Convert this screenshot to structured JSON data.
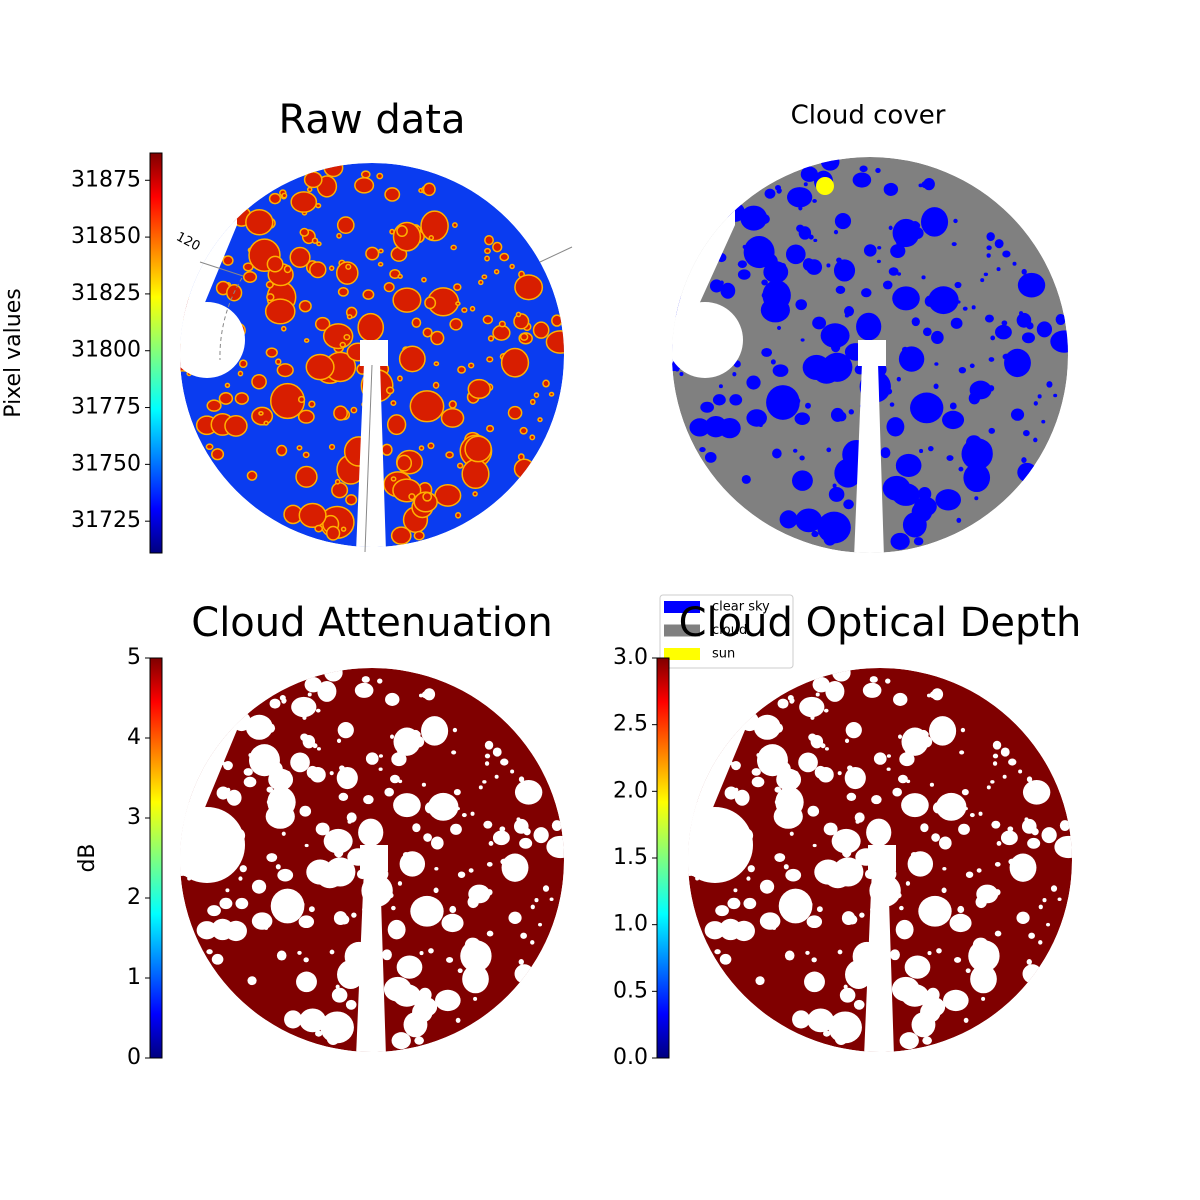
{
  "chart_data": [
    {
      "type": "image",
      "title": "Raw data",
      "ylabel": "Pixel values",
      "colormap": "jet",
      "ylim": [
        31711,
        31887
      ],
      "yticks": [
        31725,
        31750,
        31775,
        31800,
        31825,
        31850,
        31875
      ],
      "annotation": "120"
    },
    {
      "type": "image",
      "title": "Cloud cover",
      "legend": [
        {
          "name": "clear sky",
          "color": "#0000ff"
        },
        {
          "name": "cloud",
          "color": "#808080"
        },
        {
          "name": "sun",
          "color": "#ffff00"
        }
      ]
    },
    {
      "type": "image",
      "title": "Cloud Attenuation",
      "ylabel": "dB",
      "colormap": "jet",
      "ylim": [
        0,
        5
      ],
      "yticks": [
        0,
        1,
        2,
        3,
        4,
        5
      ]
    },
    {
      "type": "image",
      "title": "Cloud Optical Depth",
      "colormap": "jet",
      "ylim": [
        0,
        3
      ],
      "yticks": [
        {
          "value": 0,
          "label": "0.0"
        },
        0.5,
        {
          "value": 1,
          "label": "1.0"
        },
        1.5,
        {
          "value": 2,
          "label": "2.0"
        },
        2.5,
        {
          "value": 3,
          "label": "3.0"
        }
      ]
    }
  ]
}
